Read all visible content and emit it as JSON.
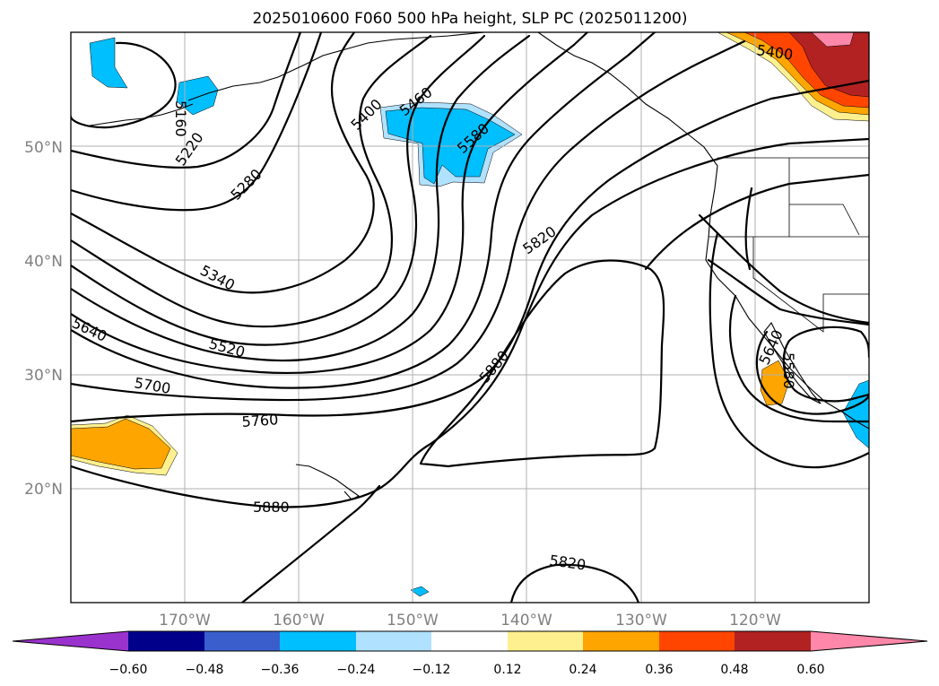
{
  "title": "2025010600 F060 500 hPa height, SLP PC (2025011200)",
  "colors": {
    "neg_060": "#9a32cd",
    "neg_048": "#00008b",
    "neg_036": "#3a5fcd",
    "neg_024": "#00bfff",
    "neg_012": "#b0e2ff",
    "neutral": "#ffffff",
    "pos_012": "#fff08f",
    "pos_024": "#ffa500",
    "pos_036": "#ff4500",
    "pos_048": "#b22222",
    "pos_060": "#ff88aa"
  },
  "map": {
    "lat_labels": [
      "50°N",
      "40°N",
      "30°N",
      "20°N"
    ],
    "lon_labels": [
      "170°W",
      "160°W",
      "150°W",
      "140°W",
      "130°W",
      "120°W"
    ],
    "contour_labels": [
      "5160",
      "5220",
      "5280",
      "5340",
      "5400",
      "5460",
      "5520",
      "5580",
      "5640",
      "5700",
      "5760",
      "5820",
      "5880",
      "5400",
      "5640",
      "5580",
      "5880",
      "5820"
    ]
  },
  "colorbar": {
    "ticks": [
      "−0.60",
      "−0.48",
      "−0.36",
      "−0.24",
      "−0.12",
      "0.12",
      "0.24",
      "0.36",
      "0.48",
      "0.60"
    ]
  }
}
